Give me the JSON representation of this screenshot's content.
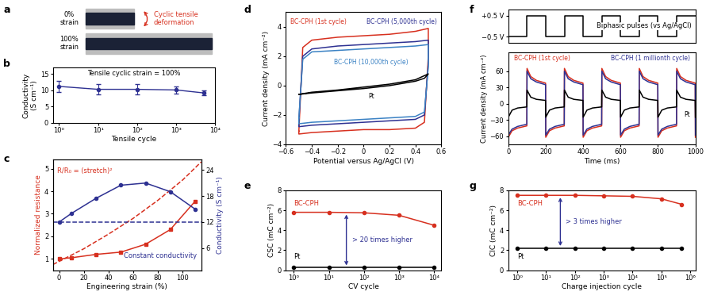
{
  "image": {
    "panel": "a",
    "top_label": "0%\nstrain",
    "bottom_label": "100%\nstrain",
    "arrow_label": "Cyclic tensile\ndeformation"
  },
  "chart_data": [
    {
      "panel": "b",
      "type": "line",
      "annotation": "Tensile cyclic strain = 100%",
      "x_label": "Tensile cycle",
      "y_label": "Conductivity\n(S cm⁻¹)",
      "log": "x",
      "x": [
        1,
        10,
        100,
        1000,
        5000
      ],
      "series": [
        {
          "color": "#2e3192",
          "marker": "circle",
          "values": [
            11.2,
            10.3,
            10.3,
            10.1,
            9.2
          ],
          "errors": [
            1.7,
            1.5,
            1.5,
            1.1,
            0.8
          ]
        }
      ],
      "xlim": [
        0.7,
        10000
      ],
      "xticks": [
        {
          "value": 1,
          "label": "10⁰"
        },
        {
          "value": 10,
          "label": "10¹"
        },
        {
          "value": 100,
          "label": "10²"
        },
        {
          "value": 1000,
          "label": "10³"
        },
        {
          "value": 10000,
          "label": "10⁴"
        }
      ],
      "ylim": [
        0,
        17
      ],
      "yticks": [
        0,
        5,
        10,
        15
      ]
    },
    {
      "panel": "c",
      "type": "line",
      "x_label": "Engineering strain (%)",
      "y_label": "Normalized resistance",
      "y2_label": "Conductivity (S cm⁻¹)",
      "x": [
        0,
        10,
        30,
        50,
        70,
        90,
        110
      ],
      "series": [
        {
          "color": "#d7301f",
          "marker": "square",
          "line_style": "solid",
          "values": [
            1.0,
            1.05,
            1.2,
            1.3,
            1.65,
            2.3,
            3.55
          ]
        },
        {
          "name": "R/R₀ = (stretch)²",
          "color": "#d7301f",
          "line_style": "dashed",
          "x": [
            -5,
            20,
            40,
            60,
            80,
            100,
            115
          ],
          "values": [
            0.75,
            1.45,
            2.1,
            2.8,
            3.6,
            4.5,
            5.3
          ]
        },
        {
          "color": "#2e3192",
          "marker": "circle",
          "line_style": "solid",
          "axis": "y2",
          "values": [
            12,
            14,
            17.5,
            20.5,
            21,
            19,
            15
          ]
        },
        {
          "name": "Constant conductivity",
          "color": "#2e3192",
          "line_style": "dashed",
          "axis": "y2",
          "x": [
            -5,
            115
          ],
          "values": [
            12,
            12
          ]
        }
      ],
      "xlim": [
        -5,
        115
      ],
      "xticks": [
        0,
        20,
        40,
        60,
        80,
        100
      ],
      "ylim": [
        0.5,
        5.4
      ],
      "yticks": [
        1,
        2,
        3,
        4,
        5
      ],
      "y2lim": [
        0.9,
        26.4
      ],
      "y2ticks": [
        6,
        12,
        18,
        24
      ]
    },
    {
      "panel": "d",
      "type": "line",
      "x_label": "Potential versus Ag/AgCl (V)",
      "y_label": "Current density (mA cm⁻²)",
      "x": [
        -0.5,
        -0.47,
        -0.4,
        -0.2,
        0,
        0.2,
        0.4,
        0.5,
        0.5,
        0.47,
        0.4,
        0.2,
        0,
        -0.2,
        -0.4,
        -0.5,
        -0.5
      ],
      "series": [
        {
          "name": "BC-CPH (1st cycle)",
          "color": "#d7301f",
          "values": [
            -3.1,
            2.6,
            3.1,
            3.3,
            3.4,
            3.5,
            3.7,
            3.9,
            2.0,
            -2.5,
            -2.9,
            -3.0,
            -3.0,
            -3.1,
            -3.2,
            -3.3,
            -3.1
          ]
        },
        {
          "name": "BC-CPH (5,000th cycle)",
          "color": "#2e3192",
          "values": [
            -2.4,
            2.0,
            2.5,
            2.7,
            2.8,
            2.9,
            3.0,
            3.1,
            1.5,
            -2.0,
            -2.3,
            -2.4,
            -2.5,
            -2.6,
            -2.7,
            -2.8,
            -2.4
          ]
        },
        {
          "name": "BC-CPH (10,000th cycle)",
          "color": "#3b82c4",
          "values": [
            -2.2,
            1.8,
            2.3,
            2.4,
            2.5,
            2.6,
            2.7,
            2.8,
            1.3,
            -1.8,
            -2.1,
            -2.2,
            -2.3,
            -2.4,
            -2.5,
            -2.6,
            -2.2
          ]
        },
        {
          "name": "Pt",
          "color": "#000000",
          "values": [
            -0.6,
            -0.55,
            -0.45,
            -0.3,
            -0.1,
            0.1,
            0.4,
            0.8,
            0.8,
            0.5,
            0.3,
            0.0,
            -0.2,
            -0.35,
            -0.5,
            -0.6,
            -0.6
          ]
        }
      ],
      "xlim": [
        -0.6,
        0.6
      ],
      "xticks": [
        {
          "value": -0.6,
          "label": "−0.6"
        },
        {
          "value": -0.4,
          "label": "−0.4"
        },
        {
          "value": -0.2,
          "label": "−0.2"
        },
        0,
        0.2,
        0.4,
        0.6
      ],
      "ylim": [
        -4,
        5
      ],
      "yticks": [
        {
          "value": -4,
          "label": "−4"
        },
        {
          "value": -2,
          "label": "−2"
        },
        0,
        2,
        4
      ]
    },
    {
      "panel": "e",
      "type": "line",
      "annotation": "> 20 times higher",
      "x_label": "CV cycle",
      "y_label": "CSC (mC cm⁻²)",
      "log": "x",
      "x": [
        1,
        10,
        100,
        1000,
        10000
      ],
      "series": [
        {
          "name": "BC-CPH",
          "color": "#d7301f",
          "marker": "circle",
          "values": [
            5.8,
            5.8,
            5.75,
            5.5,
            4.5
          ]
        },
        {
          "name": "Pt",
          "color": "#000000",
          "marker": "circle",
          "values": [
            0.25,
            0.25,
            0.25,
            0.25,
            0.25
          ]
        }
      ],
      "xlim": [
        0.6,
        16000
      ],
      "xticks": [
        {
          "value": 1,
          "label": "10⁰"
        },
        {
          "value": 10,
          "label": "10¹"
        },
        {
          "value": 100,
          "label": "10²"
        },
        {
          "value": 1000,
          "label": "10³"
        },
        {
          "value": 10000,
          "label": "10⁴"
        }
      ],
      "ylim": [
        0,
        8
      ],
      "yticks": [
        0,
        2,
        4,
        6,
        8
      ]
    },
    {
      "panel": "f",
      "type": "line",
      "annotation": "Biphasic pulses (vs Ag/AgCl)",
      "tick_labels": "y",
      "color": "#000000",
      "x": [
        0,
        100,
        100,
        200,
        200,
        300,
        300,
        400,
        400,
        500,
        500,
        600,
        600,
        700,
        700,
        800,
        800,
        900,
        900,
        1000
      ],
      "values": [
        -0.5,
        -0.5,
        0.5,
        0.5,
        -0.5,
        -0.5,
        0.5,
        0.5,
        -0.5,
        -0.5,
        0.5,
        0.5,
        -0.5,
        -0.5,
        0.5,
        0.5,
        -0.5,
        -0.5,
        0.5,
        0.5
      ],
      "xlim": [
        0,
        1000
      ],
      "ylim": [
        -0.8,
        0.8
      ],
      "yticks": [
        {
          "value": -0.5,
          "label": "−0.5 V"
        },
        {
          "value": 0.5,
          "label": "+0.5 V"
        }
      ]
    },
    {
      "type": "line",
      "x_label": "Time (ms)",
      "y_label": "Current density (mA cm⁻²)",
      "x": [
        0,
        20,
        50,
        99,
        100,
        120,
        150,
        199,
        200,
        220,
        250,
        299,
        300,
        320,
        350,
        399,
        400,
        420,
        450,
        499,
        500,
        520,
        550,
        599,
        600,
        620,
        650,
        699,
        700,
        720,
        750,
        799,
        800,
        820,
        850,
        899,
        900,
        920,
        950,
        999,
        1000
      ],
      "series": [
        {
          "name": "BC-CPH (1st cycle)",
          "color": "#d7301f",
          "values": [
            -62,
            -50,
            -45,
            -41,
            65,
            50,
            43,
            38,
            -62,
            -50,
            -45,
            -41,
            65,
            50,
            43,
            38,
            -62,
            -50,
            -45,
            -41,
            65,
            50,
            43,
            38,
            -62,
            -50,
            -45,
            -41,
            65,
            50,
            43,
            38,
            -62,
            -50,
            -45,
            -41,
            65,
            50,
            43,
            38,
            -62
          ]
        },
        {
          "name": "BC-CPH (1 millionth cycle)",
          "color": "#2e3192",
          "values": [
            -58,
            -47,
            -42,
            -38,
            60,
            46,
            40,
            35,
            -58,
            -47,
            -42,
            -38,
            60,
            46,
            40,
            35,
            -58,
            -47,
            -42,
            -38,
            60,
            46,
            40,
            35,
            -58,
            -47,
            -42,
            -38,
            60,
            46,
            40,
            35,
            -58,
            -47,
            -42,
            -38,
            60,
            46,
            40,
            35,
            -58
          ]
        },
        {
          "name": "Pt",
          "color": "#000000",
          "values": [
            -25,
            -12,
            -8,
            -6,
            25,
            12,
            8,
            6,
            -25,
            -12,
            -8,
            -6,
            25,
            12,
            8,
            6,
            -25,
            -12,
            -8,
            -6,
            25,
            12,
            8,
            6,
            -25,
            -12,
            -8,
            -6,
            25,
            12,
            8,
            6,
            -25,
            -12,
            -8,
            -6,
            25,
            12,
            8,
            6,
            -25
          ]
        }
      ],
      "xlim": [
        0,
        1000
      ],
      "xticks": [
        0,
        200,
        400,
        600,
        800,
        1000
      ],
      "ylim": [
        -75,
        95
      ],
      "yticks": [
        {
          "value": -60,
          "label": "−60"
        },
        {
          "value": -30,
          "label": "−30"
        },
        0,
        30,
        60
      ]
    },
    {
      "panel": "g",
      "type": "line",
      "annotation": "> 3 times higher",
      "x_label": "Charge injection cycle",
      "y_label": "CIC (mC cm⁻²)",
      "log": "x",
      "x": [
        1,
        10,
        100,
        1000,
        10000,
        100000,
        500000
      ],
      "series": [
        {
          "name": "BC-CPH",
          "color": "#d7301f",
          "marker": "circle",
          "values": [
            7.5,
            7.5,
            7.5,
            7.45,
            7.4,
            7.15,
            6.6
          ]
        },
        {
          "name": "Pt",
          "color": "#000000",
          "marker": "circle",
          "values": [
            2.2,
            2.2,
            2.2,
            2.2,
            2.2,
            2.2,
            2.2
          ]
        }
      ],
      "xlim": [
        0.5,
        1500000
      ],
      "xticks": [
        {
          "value": 1,
          "label": "10⁰"
        },
        {
          "value": 10,
          "label": "10¹"
        },
        {
          "value": 100,
          "label": "10²"
        },
        {
          "value": 1000,
          "label": "10³"
        },
        {
          "value": 10000,
          "label": "10⁴"
        },
        {
          "value": 100000,
          "label": "10⁵"
        },
        {
          "value": 1000000,
          "label": "10⁶"
        }
      ],
      "ylim": [
        0,
        8
      ],
      "yticks": [
        0,
        2,
        4,
        6,
        8
      ]
    }
  ]
}
